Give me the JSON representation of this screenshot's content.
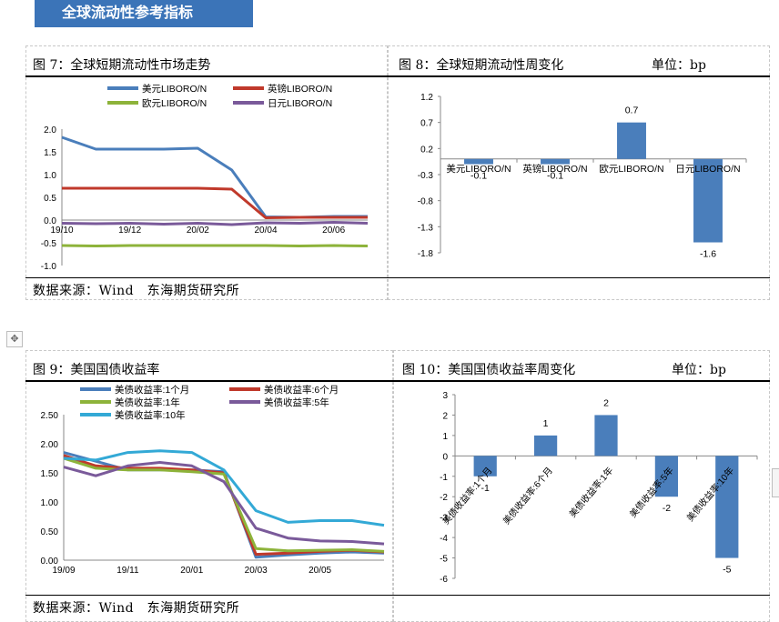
{
  "banner": {
    "title": "全球流动性参考指标"
  },
  "panels": {
    "p7": {
      "title": "图 7：全球短期流动性市场走势",
      "source": "数据来源：Wind　东海期货研究所"
    },
    "p8": {
      "title": "图 8：全球短期流动性周变化",
      "unit": "单位：bp"
    },
    "p9": {
      "title": "图 9：美国国债收益率",
      "source": "数据来源：Wind　东海期货研究所"
    },
    "p10": {
      "title": "图 10：美国国债收益率周变化",
      "unit": "单位：bp"
    }
  },
  "icons": {
    "move": "move-cross-icon"
  },
  "chart_data": [
    {
      "id": "fig7",
      "type": "line",
      "title": "",
      "x": [
        "2019-10",
        "2019-11",
        "2019-12",
        "2020-01",
        "2020-02",
        "2020-03",
        "2020-04",
        "2020-05",
        "2020-06",
        "2020-07"
      ],
      "xticks": [
        "19/10",
        "19/12",
        "20/02",
        "20/04",
        "20/06"
      ],
      "yticks": [
        "2.0",
        "1.5",
        "1.0",
        "0.5",
        "0.0",
        "-0.5",
        "-1.0"
      ],
      "ylim": [
        -1.0,
        2.0
      ],
      "legend_position": "top",
      "series": [
        {
          "name": "美元LIBORO/N",
          "color": "#4a7ebb",
          "values": [
            1.82,
            1.56,
            1.56,
            1.56,
            1.58,
            1.1,
            0.07,
            0.06,
            0.08,
            0.08
          ]
        },
        {
          "name": "英镑LIBORO/N",
          "color": "#c0392b",
          "values": [
            0.7,
            0.7,
            0.7,
            0.7,
            0.7,
            0.68,
            0.05,
            0.06,
            0.06,
            0.06
          ]
        },
        {
          "name": "欧元LIBORO/N",
          "color": "#8db33a",
          "values": [
            -0.56,
            -0.57,
            -0.56,
            -0.56,
            -0.56,
            -0.56,
            -0.56,
            -0.57,
            -0.56,
            -0.57
          ]
        },
        {
          "name": "日元LIBORO/N",
          "color": "#7a5a9a",
          "values": [
            -0.07,
            -0.08,
            -0.07,
            -0.09,
            -0.07,
            -0.1,
            -0.06,
            -0.07,
            -0.05,
            -0.07
          ]
        }
      ]
    },
    {
      "id": "fig8",
      "type": "bar",
      "title": "",
      "categories": [
        "美元LIBORO/N",
        "英镑LIBORO/N",
        "欧元LIBORO/N",
        "日元LIBORO/N"
      ],
      "values": [
        -0.1,
        -0.1,
        0.7,
        -1.6
      ],
      "labels": [
        "-0.1",
        "-0.1",
        "0.7",
        "-1.6"
      ],
      "yticks": [
        "1.2",
        "0.7",
        "0.2",
        "-0.3",
        "-0.8",
        "-1.3",
        "-1.8"
      ],
      "ylim": [
        -1.8,
        1.2
      ],
      "color": "#4a7ebb"
    },
    {
      "id": "fig9",
      "type": "line",
      "title": "",
      "x": [
        "2019-09",
        "2019-10",
        "2019-11",
        "2019-12",
        "2020-01",
        "2020-02",
        "2020-03",
        "2020-04",
        "2020-05",
        "2020-06",
        "2020-07"
      ],
      "xticks": [
        "19/09",
        "19/11",
        "20/01",
        "20/03",
        "20/05"
      ],
      "yticks": [
        "2.50",
        "2.00",
        "1.50",
        "1.00",
        "0.50",
        "0.00"
      ],
      "ylim": [
        0,
        2.5
      ],
      "legend_position": "top",
      "series": [
        {
          "name": "美债收益率:1个月",
          "color": "#4a7ebb",
          "values": [
            1.85,
            1.7,
            1.55,
            1.55,
            1.55,
            1.52,
            0.05,
            0.09,
            0.12,
            0.14,
            0.12
          ]
        },
        {
          "name": "美债收益率:6个月",
          "color": "#c0392b",
          "values": [
            1.8,
            1.62,
            1.58,
            1.58,
            1.55,
            1.5,
            0.1,
            0.12,
            0.15,
            0.17,
            0.14
          ]
        },
        {
          "name": "美债收益率:1年",
          "color": "#8db33a",
          "values": [
            1.75,
            1.58,
            1.55,
            1.55,
            1.52,
            1.48,
            0.2,
            0.16,
            0.17,
            0.18,
            0.15
          ]
        },
        {
          "name": "美债收益率:5年",
          "color": "#7a5a9a",
          "values": [
            1.6,
            1.45,
            1.62,
            1.68,
            1.62,
            1.35,
            0.55,
            0.38,
            0.33,
            0.32,
            0.28
          ]
        },
        {
          "name": "美债收益率:10年",
          "color": "#33a9d6",
          "values": [
            1.75,
            1.72,
            1.85,
            1.88,
            1.85,
            1.55,
            0.85,
            0.65,
            0.68,
            0.68,
            0.6
          ]
        }
      ]
    },
    {
      "id": "fig10",
      "type": "bar",
      "title": "",
      "categories": [
        "美债收益率:1个月",
        "美债收益率:6个月",
        "美债收益率:1年",
        "美债收益率:5年",
        "美债收益率:10年"
      ],
      "values": [
        -1,
        1,
        2,
        -2,
        -5
      ],
      "labels": [
        "-1",
        "1",
        "2",
        "-2",
        "-5"
      ],
      "yticks": [
        "3",
        "2",
        "1",
        "0",
        "-1",
        "-2",
        "-3",
        "-4",
        "-5",
        "-6"
      ],
      "ylim": [
        -6,
        3
      ],
      "color": "#4a7ebb"
    }
  ]
}
